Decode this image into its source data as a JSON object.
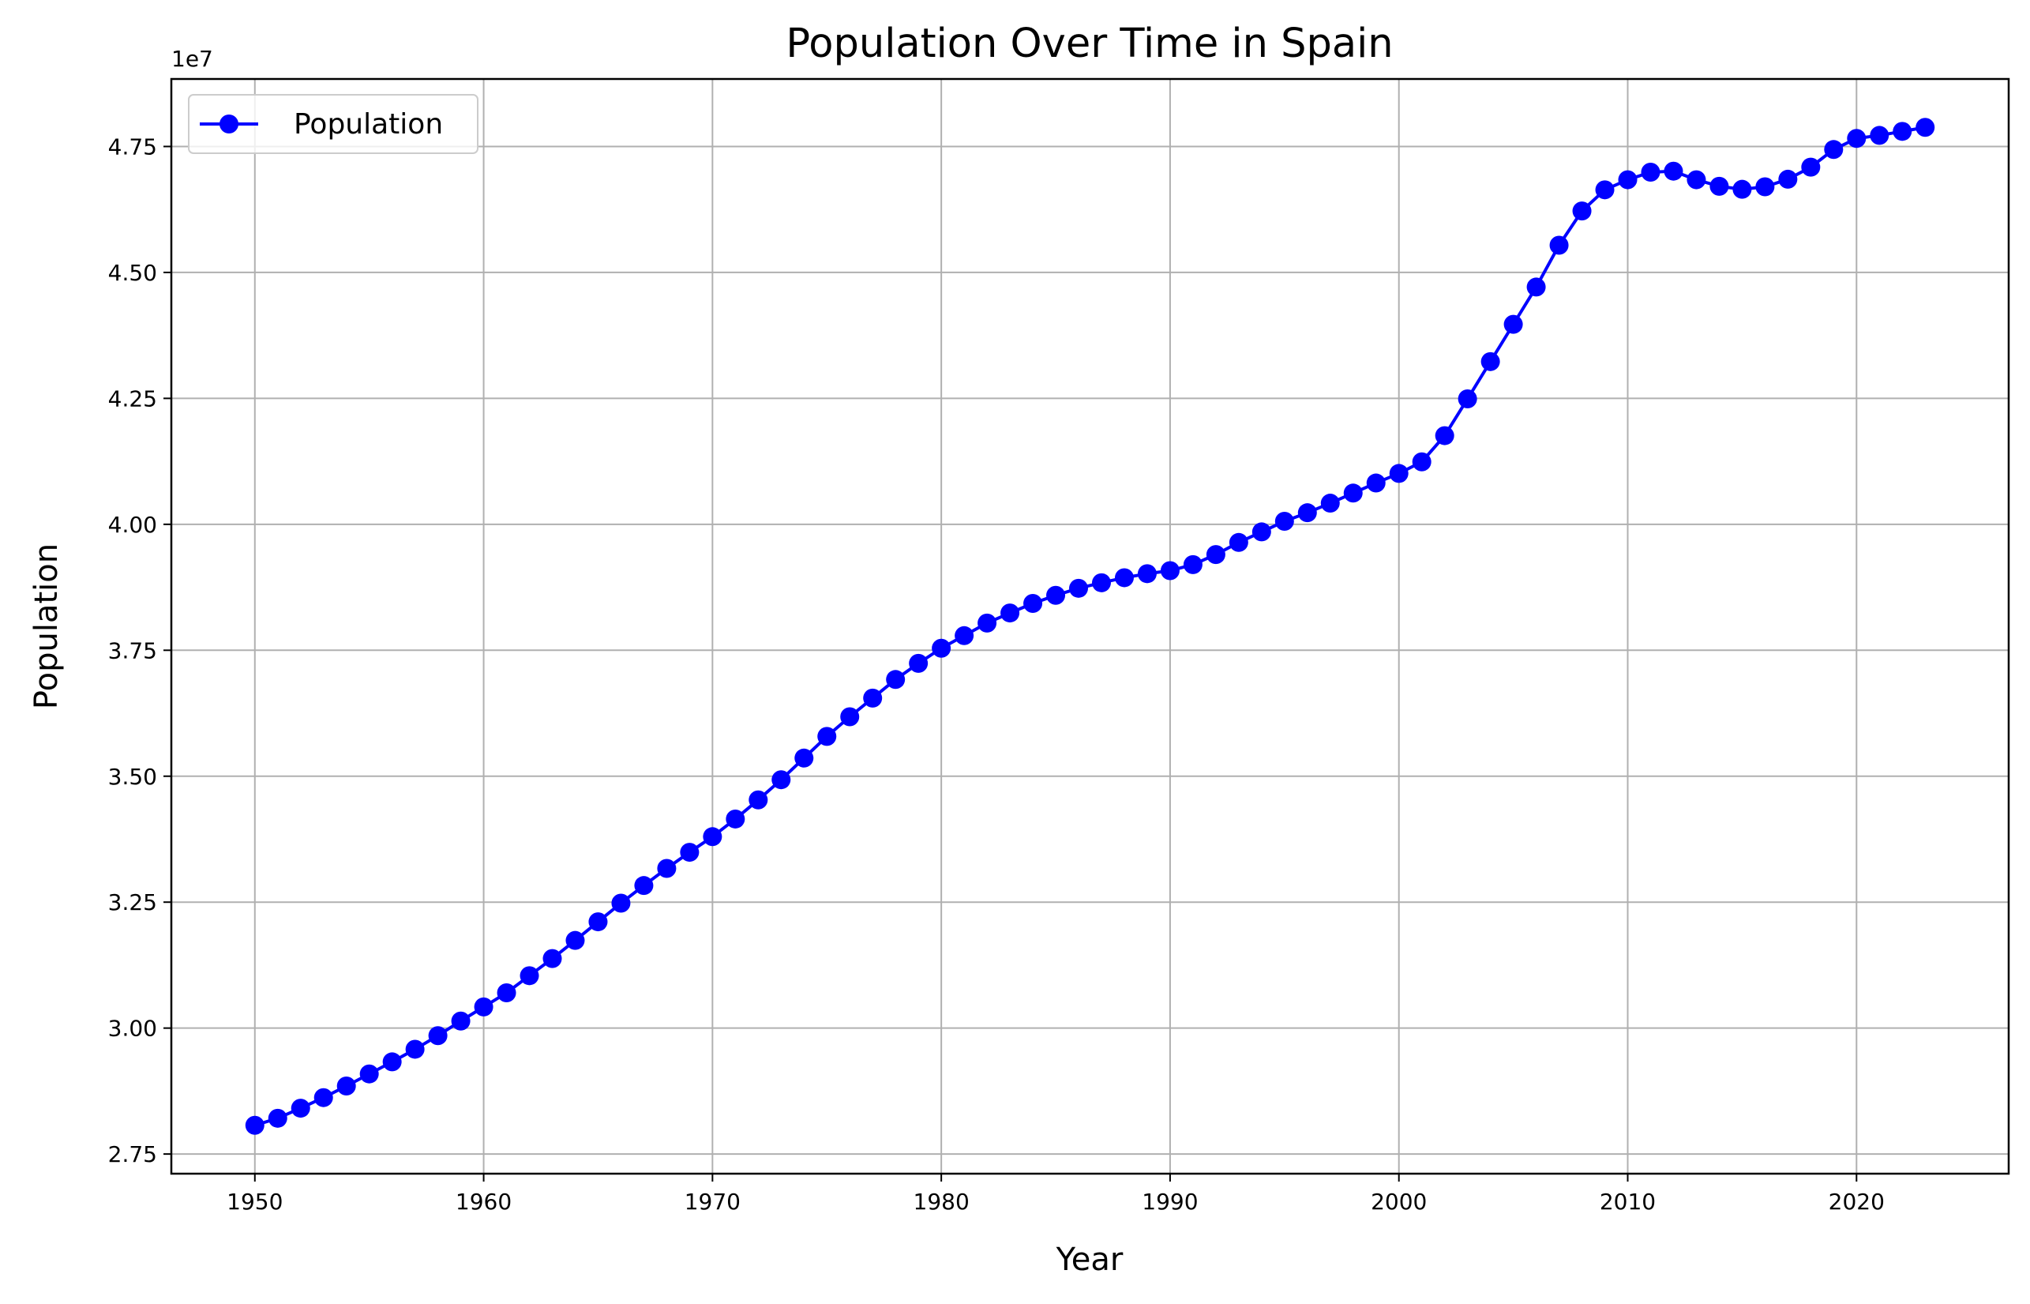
{
  "chart_data": {
    "type": "line",
    "title": "Population Over Time in Spain",
    "xlabel": "Year",
    "ylabel": "Population",
    "y_offset_label": "1e7",
    "xlim": [
      1946.35,
      2026.65
    ],
    "ylim": [
      27110000,
      48840000
    ],
    "xticks": [
      1950,
      1960,
      1970,
      1980,
      1990,
      2000,
      2010,
      2020
    ],
    "yticks": [
      2.75,
      3.0,
      3.25,
      3.5,
      3.75,
      4.0,
      4.25,
      4.5,
      4.75
    ],
    "ytick_labels": [
      "2.75",
      "3.00",
      "3.25",
      "3.50",
      "3.75",
      "4.00",
      "4.25",
      "4.50",
      "4.75"
    ],
    "grid": true,
    "legend_position": "top-left",
    "colors": {
      "series": "#0000ff"
    },
    "series": [
      {
        "name": "Population",
        "x": [
          1950,
          1951,
          1952,
          1953,
          1954,
          1955,
          1956,
          1957,
          1958,
          1959,
          1960,
          1961,
          1962,
          1963,
          1964,
          1965,
          1966,
          1967,
          1968,
          1969,
          1970,
          1971,
          1972,
          1973,
          1974,
          1975,
          1976,
          1977,
          1978,
          1979,
          1980,
          1981,
          1982,
          1983,
          1984,
          1985,
          1986,
          1987,
          1988,
          1989,
          1990,
          1991,
          1992,
          1993,
          1994,
          1995,
          1996,
          1997,
          1998,
          1999,
          2000,
          2001,
          2002,
          2003,
          2004,
          2005,
          2006,
          2007,
          2008,
          2009,
          2010,
          2011,
          2012,
          2013,
          2014,
          2015,
          2016,
          2017,
          2018,
          2019,
          2020,
          2021,
          2022,
          2023
        ],
        "values": [
          28070000,
          28210000,
          28410000,
          28620000,
          28850000,
          29090000,
          29330000,
          29580000,
          29850000,
          30140000,
          30420000,
          30700000,
          31040000,
          31380000,
          31740000,
          32110000,
          32480000,
          32830000,
          33170000,
          33490000,
          33800000,
          34150000,
          34530000,
          34930000,
          35360000,
          35790000,
          36180000,
          36550000,
          36920000,
          37240000,
          37540000,
          37790000,
          38040000,
          38240000,
          38430000,
          38590000,
          38730000,
          38840000,
          38940000,
          39020000,
          39080000,
          39200000,
          39400000,
          39640000,
          39850000,
          40060000,
          40230000,
          40420000,
          40620000,
          40820000,
          41010000,
          41240000,
          41760000,
          42490000,
          43230000,
          43970000,
          44710000,
          45540000,
          46220000,
          46640000,
          46840000,
          46990000,
          47010000,
          46840000,
          46710000,
          46650000,
          46700000,
          46850000,
          47090000,
          47440000,
          47660000,
          47720000,
          47800000,
          47880000
        ]
      }
    ]
  }
}
